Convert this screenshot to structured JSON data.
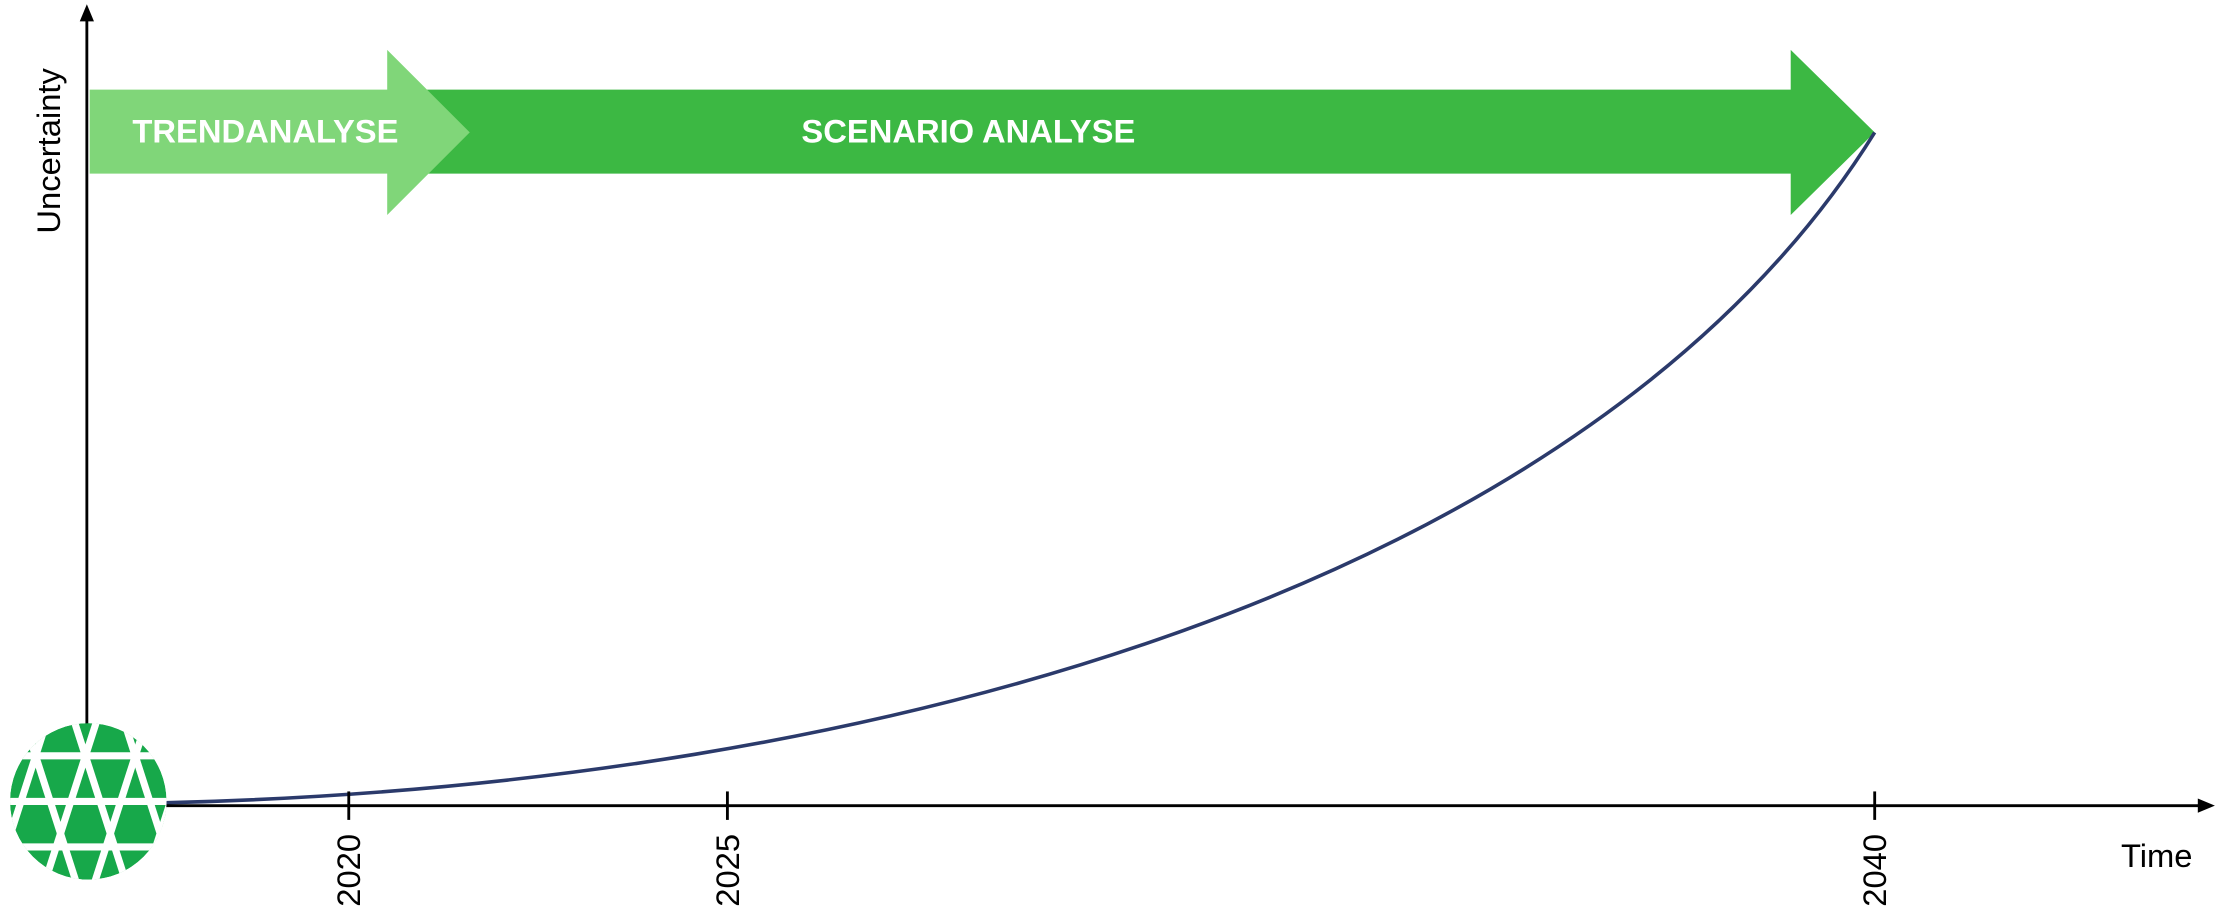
{
  "y_axis": {
    "label": "Uncertainty"
  },
  "x_axis": {
    "label": "Time",
    "ticks": [
      "2020",
      "2025",
      "2040"
    ]
  },
  "phases": [
    {
      "label": "TRENDANALYSE"
    },
    {
      "label": "SCENARIO ANALYSE"
    }
  ]
}
